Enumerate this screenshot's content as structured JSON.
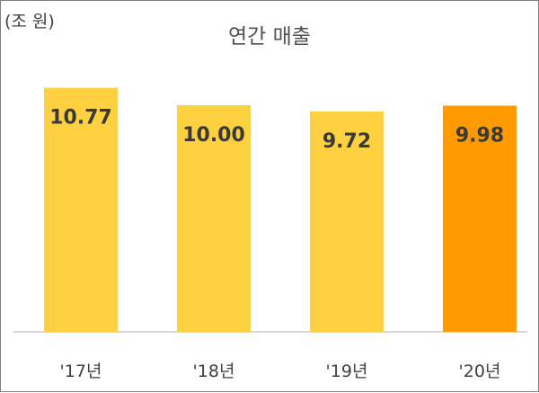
{
  "chart_data": {
    "type": "bar",
    "title": "연간 매출",
    "unit_label": "(조 원)",
    "categories": [
      "'17년",
      "'18년",
      "'19년",
      "'20년"
    ],
    "values": [
      10.77,
      10.0,
      9.72,
      9.98
    ],
    "value_labels": [
      "10.77",
      "10.00",
      "9.72",
      "9.98"
    ],
    "ylim": [
      0,
      11
    ],
    "grid": false,
    "legend": "none",
    "colors": {
      "default_bar": "#FFD040",
      "highlight_bar": "#FF9A00",
      "axis_line": "#cccccc"
    },
    "highlight_index": 3
  }
}
